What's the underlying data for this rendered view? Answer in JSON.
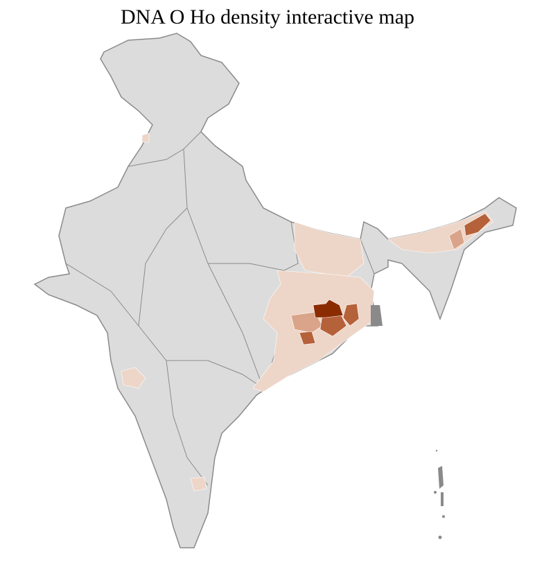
{
  "title": "DNA O Ho density interactive map",
  "colors": {
    "base": "#dcdcdc",
    "border": "#8a8a8a",
    "low": "#edd6c8",
    "medium": "#d9a489",
    "high": "#b5613a",
    "highest": "#8b2c00"
  }
}
